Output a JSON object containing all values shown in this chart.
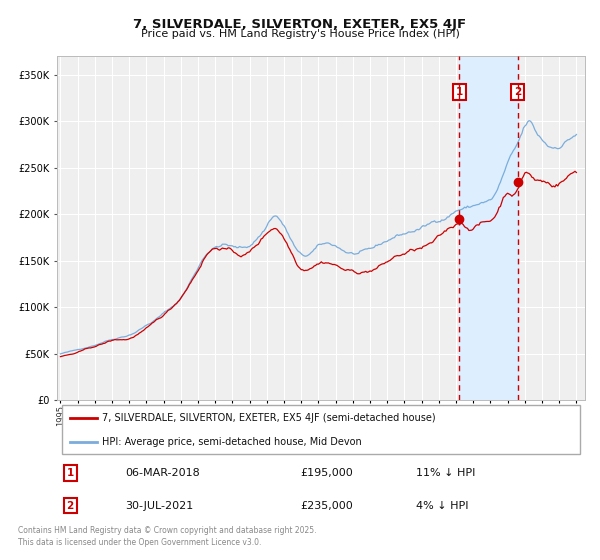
{
  "title": "7, SILVERDALE, SILVERTON, EXETER, EX5 4JF",
  "subtitle": "Price paid vs. HM Land Registry's House Price Index (HPI)",
  "legend_property": "7, SILVERDALE, SILVERTON, EXETER, EX5 4JF (semi-detached house)",
  "legend_hpi": "HPI: Average price, semi-detached house, Mid Devon",
  "footer": "Contains HM Land Registry data © Crown copyright and database right 2025.\nThis data is licensed under the Open Government Licence v3.0.",
  "property_color": "#cc0000",
  "hpi_color": "#7aaddc",
  "shade_color": "#ddeeff",
  "sale1_date": "06-MAR-2018",
  "sale1_price": 195000,
  "sale1_pct": "11% ↓ HPI",
  "sale2_date": "30-JUL-2021",
  "sale2_price": 235000,
  "sale2_pct": "4% ↓ HPI",
  "sale1_x": 2018.18,
  "sale2_x": 2021.58,
  "vline_color": "#cc0000",
  "ylim": [
    0,
    370000
  ],
  "xlim_start": 1994.8,
  "xlim_end": 2025.5,
  "background_color": "#ffffff",
  "plot_background": "#efefef",
  "grid_color": "#ffffff",
  "title_fontsize": 9.5,
  "subtitle_fontsize": 8.0
}
